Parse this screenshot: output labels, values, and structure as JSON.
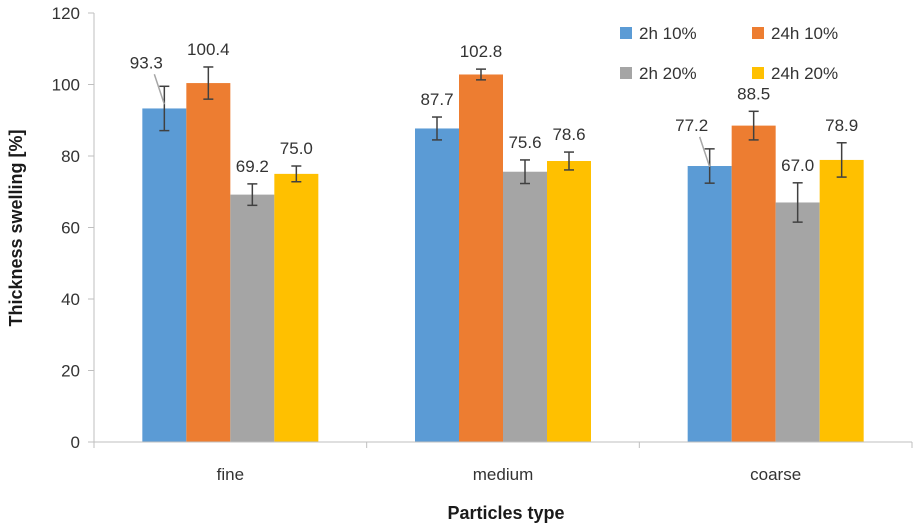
{
  "chart_data": {
    "type": "bar",
    "title": "",
    "xlabel": "Particles type",
    "ylabel": "Thickness swelling [%]",
    "ylim": [
      0,
      120
    ],
    "yticks": [
      "0",
      "20",
      "40",
      "60",
      "80",
      "100",
      "120"
    ],
    "grid": false,
    "legend_position": "top-right",
    "categories": [
      "fine",
      "medium",
      "coarse"
    ],
    "series": [
      {
        "name": "2h 10%",
        "color": "#5B9BD5",
        "values": [
          93.3,
          87.7,
          77.2
        ],
        "labels": [
          "93.3",
          "87.7",
          "77.2"
        ],
        "errors": [
          6.2,
          3.2,
          4.8
        ]
      },
      {
        "name": "24h 10%",
        "color": "#ED7D31",
        "values": [
          100.4,
          102.8,
          88.5
        ],
        "labels": [
          "100.4",
          "102.8",
          "88.5"
        ],
        "errors": [
          4.5,
          1.5,
          4.0
        ]
      },
      {
        "name": "2h 20%",
        "color": "#A5A5A5",
        "values": [
          69.2,
          75.6,
          67.0
        ],
        "labels": [
          "69.2",
          "75.6",
          "67.0"
        ],
        "errors": [
          3.0,
          3.3,
          5.5
        ]
      },
      {
        "name": "24h 20%",
        "color": "#FFC000",
        "values": [
          75.0,
          78.6,
          78.9
        ],
        "labels": [
          "75.0",
          "78.6",
          "78.9"
        ],
        "errors": [
          2.2,
          2.5,
          4.8
        ]
      }
    ]
  }
}
